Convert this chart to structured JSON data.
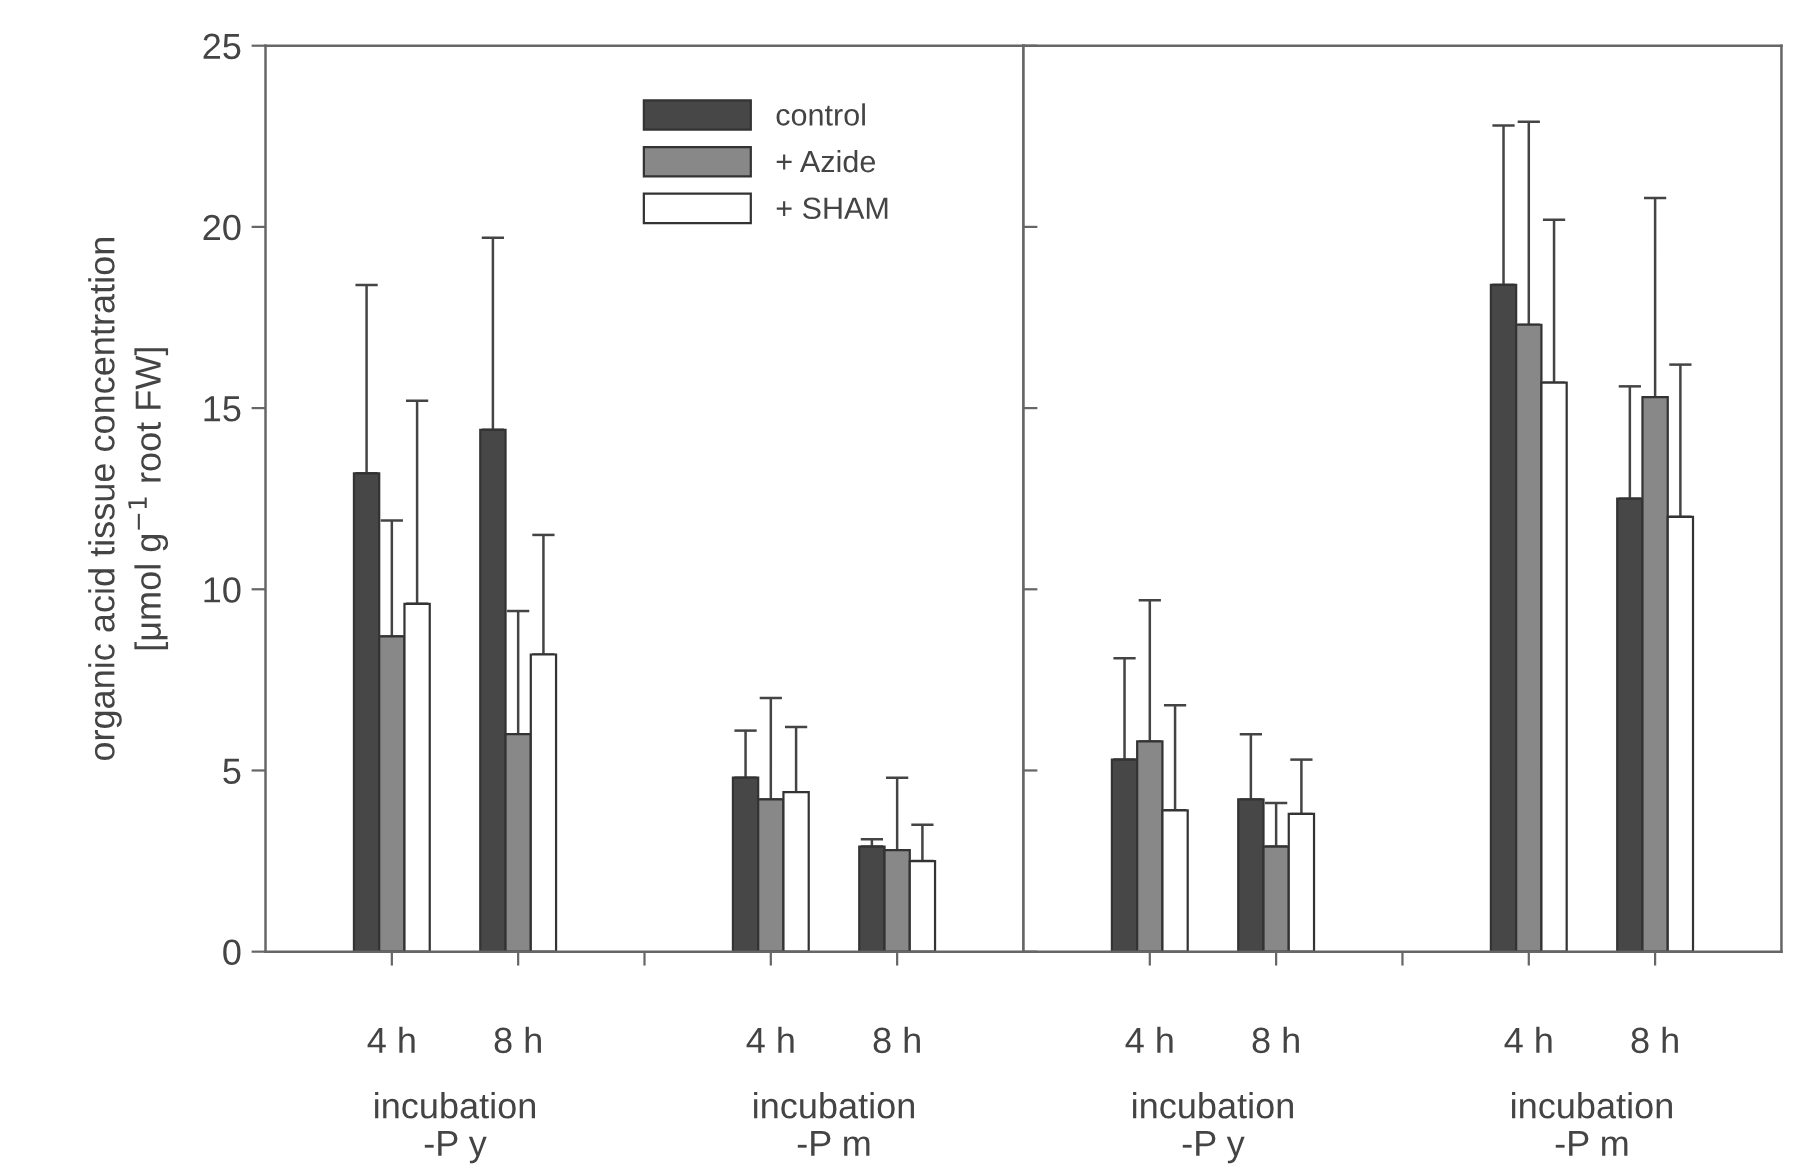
{
  "chart_data": [
    {
      "type": "bar",
      "ylabel": "organic acid tissue concentration\n[μmol g$^{−1}$ root FW]",
      "categories": [
        "4 h",
        "8 h",
        null,
        "4 h",
        "8 h"
      ],
      "ylim": [
        0,
        25
      ],
      "yticks": [
        0,
        5,
        10,
        15,
        20,
        25
      ],
      "grid": false,
      "legend": "top right",
      "series": [
        {
          "name": "control",
          "color": "#474747",
          "values": [
            13.2,
            14.4,
            null,
            4.8,
            2.9
          ],
          "errors": [
            [
              13.2,
              18.4
            ],
            [
              14.4,
              19.7
            ],
            null,
            [
              4.8,
              6.1
            ],
            [
              2.9,
              3.1
            ]
          ]
        },
        {
          "name": "+ Azide",
          "color": "#888888",
          "values": [
            8.7,
            6.0,
            null,
            4.2,
            2.8
          ],
          "errors": [
            [
              8.7,
              11.9
            ],
            [
              6.0,
              9.4
            ],
            null,
            [
              4.2,
              7.0
            ],
            [
              2.8,
              4.8
            ]
          ]
        },
        {
          "name": "+ SHAM",
          "color": "#ffffff",
          "values": [
            9.6,
            8.2,
            null,
            4.4,
            2.5
          ],
          "errors": [
            [
              9.6,
              15.2
            ],
            [
              8.2,
              11.5
            ],
            null,
            [
              4.4,
              6.2
            ],
            [
              2.5,
              3.5
            ]
          ]
        }
      ],
      "annotations": [
        "incubation\n-P y",
        "incubation\n-P m"
      ]
    },
    {
      "type": "bar",
      "categories": [
        "4 h",
        "8 h",
        null,
        "4 h",
        "8 h"
      ],
      "ylim": [
        0,
        25
      ],
      "yticks": [
        0,
        5,
        10,
        15,
        20,
        25
      ],
      "grid": false,
      "tick_labels": "x",
      "series": [
        {
          "color": "#474747",
          "values": [
            5.3,
            4.2,
            null,
            18.4,
            12.5
          ],
          "errors": [
            [
              5.3,
              8.1
            ],
            [
              4.2,
              6.0
            ],
            null,
            [
              18.4,
              22.8
            ],
            [
              12.5,
              15.6
            ]
          ]
        },
        {
          "color": "#888888",
          "values": [
            5.8,
            2.9,
            null,
            17.3,
            15.3
          ],
          "errors": [
            [
              5.8,
              9.7
            ],
            [
              2.9,
              4.1
            ],
            null,
            [
              17.3,
              22.9
            ],
            [
              15.3,
              20.8
            ]
          ]
        },
        {
          "color": "#ffffff",
          "values": [
            3.9,
            3.8,
            null,
            15.7,
            12.0
          ],
          "errors": [
            [
              3.9,
              6.8
            ],
            [
              3.8,
              5.3
            ],
            null,
            [
              15.7,
              20.2
            ],
            [
              12.0,
              16.2
            ]
          ]
        }
      ],
      "annotations": [
        "incubation\n-P y",
        "incubation\n-P m"
      ]
    }
  ]
}
